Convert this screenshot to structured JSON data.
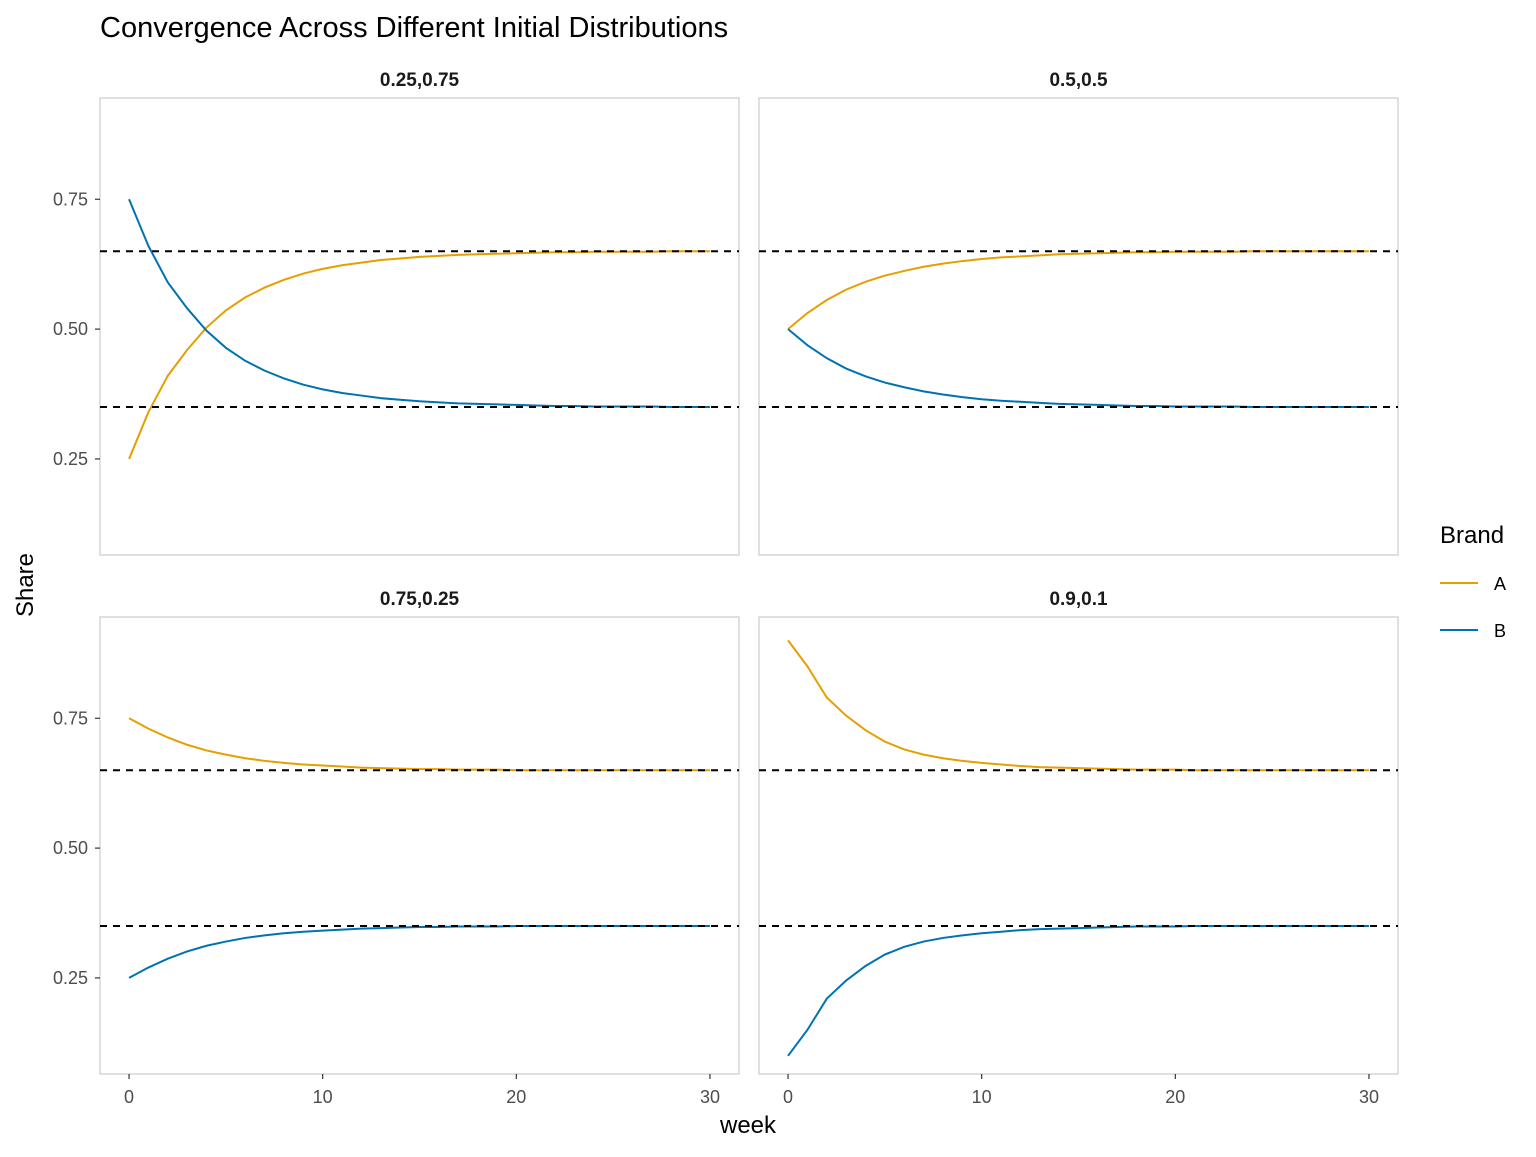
{
  "chart_data": {
    "type": "line",
    "title": "Convergence Across Different Initial Distributions",
    "xlabel": "week",
    "ylabel": "Share",
    "xlim": [
      -1.5,
      31.5
    ],
    "ylim": [
      0.065,
      0.945
    ],
    "x_ticks": [
      0,
      10,
      20,
      30
    ],
    "x_tick_labels": [
      "0",
      "10",
      "20",
      "30"
    ],
    "y_ticks": [
      0.25,
      0.5,
      0.75
    ],
    "y_tick_labels": [
      "0.25",
      "0.50",
      "0.75"
    ],
    "equilibrium_lines": [
      0.65,
      0.35
    ],
    "legend": {
      "title": "Brand",
      "position": "right",
      "entries": [
        {
          "label": "A",
          "color": "#E69F00"
        },
        {
          "label": "B",
          "color": "#0072B2"
        }
      ]
    },
    "grid": false,
    "facets": [
      {
        "label": "0.25,0.75",
        "series": [
          {
            "name": "A",
            "color": "#E69F00",
            "x": [
              0,
              1,
              2,
              3,
              4,
              5,
              6,
              7,
              8,
              9,
              10,
              11,
              12,
              13,
              14,
              15,
              16,
              17,
              18,
              19,
              20,
              21,
              22,
              23,
              24,
              25,
              26,
              27,
              28,
              29,
              30
            ],
            "values": [
              0.25,
              0.34,
              0.41,
              0.46,
              0.503,
              0.536,
              0.561,
              0.58,
              0.595,
              0.607,
              0.616,
              0.623,
              0.628,
              0.633,
              0.636,
              0.639,
              0.641,
              0.643,
              0.644,
              0.645,
              0.646,
              0.647,
              0.648,
              0.648,
              0.649,
              0.649,
              0.649,
              0.649,
              0.65,
              0.65,
              0.65
            ]
          },
          {
            "name": "B",
            "color": "#0072B2",
            "x": [
              0,
              1,
              2,
              3,
              4,
              5,
              6,
              7,
              8,
              9,
              10,
              11,
              12,
              13,
              14,
              15,
              16,
              17,
              18,
              19,
              20,
              21,
              22,
              23,
              24,
              25,
              26,
              27,
              28,
              29,
              30
            ],
            "values": [
              0.75,
              0.66,
              0.59,
              0.54,
              0.497,
              0.464,
              0.439,
              0.42,
              0.405,
              0.393,
              0.384,
              0.377,
              0.372,
              0.367,
              0.364,
              0.361,
              0.359,
              0.357,
              0.356,
              0.355,
              0.354,
              0.353,
              0.352,
              0.352,
              0.351,
              0.351,
              0.351,
              0.351,
              0.35,
              0.35,
              0.35
            ]
          }
        ]
      },
      {
        "label": "0.5,0.5",
        "series": [
          {
            "name": "A",
            "color": "#E69F00",
            "x": [
              0,
              1,
              2,
              3,
              4,
              5,
              6,
              7,
              8,
              9,
              10,
              11,
              12,
              13,
              14,
              15,
              16,
              17,
              18,
              19,
              20,
              21,
              22,
              23,
              24,
              25,
              26,
              27,
              28,
              29,
              30
            ],
            "values": [
              0.5,
              0.531,
              0.556,
              0.576,
              0.591,
              0.603,
              0.612,
              0.62,
              0.626,
              0.631,
              0.635,
              0.638,
              0.64,
              0.642,
              0.644,
              0.645,
              0.646,
              0.647,
              0.648,
              0.648,
              0.649,
              0.649,
              0.649,
              0.649,
              0.65,
              0.65,
              0.65,
              0.65,
              0.65,
              0.65,
              0.65
            ]
          },
          {
            "name": "B",
            "color": "#0072B2",
            "x": [
              0,
              1,
              2,
              3,
              4,
              5,
              6,
              7,
              8,
              9,
              10,
              11,
              12,
              13,
              14,
              15,
              16,
              17,
              18,
              19,
              20,
              21,
              22,
              23,
              24,
              25,
              26,
              27,
              28,
              29,
              30
            ],
            "values": [
              0.5,
              0.469,
              0.444,
              0.424,
              0.409,
              0.397,
              0.388,
              0.38,
              0.374,
              0.369,
              0.365,
              0.362,
              0.36,
              0.358,
              0.356,
              0.355,
              0.354,
              0.353,
              0.352,
              0.352,
              0.351,
              0.351,
              0.351,
              0.351,
              0.35,
              0.35,
              0.35,
              0.35,
              0.35,
              0.35,
              0.35
            ]
          }
        ]
      },
      {
        "label": "0.75,0.25",
        "series": [
          {
            "name": "A",
            "color": "#E69F00",
            "x": [
              0,
              1,
              2,
              3,
              4,
              5,
              6,
              7,
              8,
              9,
              10,
              11,
              12,
              13,
              14,
              15,
              16,
              17,
              18,
              19,
              20,
              21,
              22,
              23,
              24,
              25,
              26,
              27,
              28,
              29,
              30
            ],
            "values": [
              0.75,
              0.73,
              0.713,
              0.699,
              0.688,
              0.68,
              0.673,
              0.668,
              0.664,
              0.661,
              0.659,
              0.657,
              0.655,
              0.654,
              0.653,
              0.652,
              0.652,
              0.651,
              0.651,
              0.651,
              0.65,
              0.65,
              0.65,
              0.65,
              0.65,
              0.65,
              0.65,
              0.65,
              0.65,
              0.65,
              0.65
            ]
          },
          {
            "name": "B",
            "color": "#0072B2",
            "x": [
              0,
              1,
              2,
              3,
              4,
              5,
              6,
              7,
              8,
              9,
              10,
              11,
              12,
              13,
              14,
              15,
              16,
              17,
              18,
              19,
              20,
              21,
              22,
              23,
              24,
              25,
              26,
              27,
              28,
              29,
              30
            ],
            "values": [
              0.25,
              0.27,
              0.287,
              0.301,
              0.312,
              0.32,
              0.327,
              0.332,
              0.336,
              0.339,
              0.341,
              0.343,
              0.345,
              0.346,
              0.347,
              0.348,
              0.348,
              0.349,
              0.349,
              0.349,
              0.35,
              0.35,
              0.35,
              0.35,
              0.35,
              0.35,
              0.35,
              0.35,
              0.35,
              0.35,
              0.35
            ]
          }
        ]
      },
      {
        "label": "0.9,0.1",
        "series": [
          {
            "name": "A",
            "color": "#E69F00",
            "x": [
              0,
              1,
              2,
              3,
              4,
              5,
              6,
              7,
              8,
              9,
              10,
              11,
              12,
              13,
              14,
              15,
              16,
              17,
              18,
              19,
              20,
              21,
              22,
              23,
              24,
              25,
              26,
              27,
              28,
              29,
              30
            ],
            "values": [
              0.9,
              0.85,
              0.79,
              0.755,
              0.727,
              0.705,
              0.69,
              0.68,
              0.673,
              0.668,
              0.664,
              0.661,
              0.658,
              0.656,
              0.655,
              0.654,
              0.653,
              0.652,
              0.651,
              0.651,
              0.651,
              0.65,
              0.65,
              0.65,
              0.65,
              0.65,
              0.65,
              0.65,
              0.65,
              0.65,
              0.65
            ]
          },
          {
            "name": "B",
            "color": "#0072B2",
            "x": [
              0,
              1,
              2,
              3,
              4,
              5,
              6,
              7,
              8,
              9,
              10,
              11,
              12,
              13,
              14,
              15,
              16,
              17,
              18,
              19,
              20,
              21,
              22,
              23,
              24,
              25,
              26,
              27,
              28,
              29,
              30
            ],
            "values": [
              0.1,
              0.15,
              0.21,
              0.245,
              0.273,
              0.295,
              0.31,
              0.32,
              0.327,
              0.332,
              0.336,
              0.339,
              0.342,
              0.344,
              0.345,
              0.346,
              0.347,
              0.348,
              0.349,
              0.349,
              0.349,
              0.35,
              0.35,
              0.35,
              0.35,
              0.35,
              0.35,
              0.35,
              0.35,
              0.35,
              0.35
            ]
          }
        ]
      }
    ]
  }
}
